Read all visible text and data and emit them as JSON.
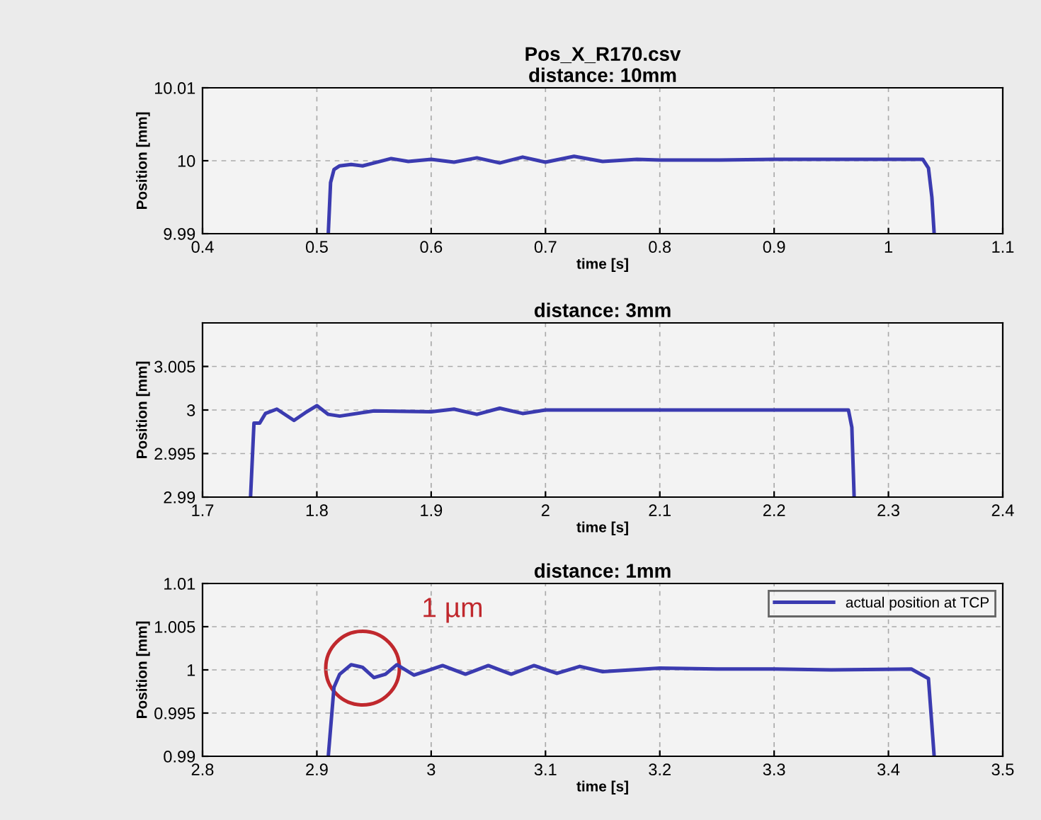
{
  "chart_data": [
    {
      "type": "line",
      "title": "Pos_X_R170.csv",
      "subtitle": "distance: 10mm",
      "xlabel": "time [s]",
      "ylabel": "Position [mm]",
      "xlim": [
        0.4,
        1.1
      ],
      "ylim": [
        9.99,
        10.01
      ],
      "xticks": [
        0.4,
        0.5,
        0.6,
        0.7,
        0.8,
        0.9,
        1,
        1.1
      ],
      "yticks": [
        9.99,
        10,
        10.01
      ],
      "grid": true,
      "line_style": "solid",
      "series": [
        {
          "color": "#3b3bb0",
          "x": [
            0.51,
            0.512,
            0.515,
            0.52,
            0.53,
            0.54,
            0.55,
            0.565,
            0.58,
            0.6,
            0.62,
            0.64,
            0.66,
            0.68,
            0.7,
            0.725,
            0.75,
            0.78,
            0.8,
            0.85,
            0.9,
            0.95,
            1.0,
            1.03,
            1.035,
            1.038,
            1.04
          ],
          "values": [
            9.99,
            9.997,
            9.9988,
            9.9993,
            9.9995,
            9.9993,
            9.9997,
            10.0003,
            9.9999,
            10.0002,
            9.9998,
            10.0004,
            9.9997,
            10.0005,
            9.9998,
            10.0006,
            9.9999,
            10.0002,
            10.0001,
            10.0001,
            10.0002,
            10.0002,
            10.0002,
            10.0002,
            9.999,
            9.995,
            9.99
          ]
        }
      ]
    },
    {
      "type": "line",
      "title": "distance: 3mm",
      "xlabel": "time [s]",
      "ylabel": "Position [mm]",
      "xlim": [
        1.7,
        2.4
      ],
      "ylim": [
        2.99,
        3.01
      ],
      "xticks": [
        1.7,
        1.8,
        1.9,
        2,
        2.1,
        2.2,
        2.3,
        2.4
      ],
      "yticks": [
        2.99,
        2.995,
        3,
        3.005
      ],
      "grid": true,
      "line_style": "solid",
      "series": [
        {
          "color": "#3b3bb0",
          "x": [
            1.742,
            1.745,
            1.75,
            1.755,
            1.765,
            1.78,
            1.79,
            1.8,
            1.81,
            1.82,
            1.85,
            1.9,
            1.92,
            1.94,
            1.96,
            1.98,
            2.0,
            2.1,
            2.2,
            2.265,
            2.268,
            2.27
          ],
          "values": [
            2.99,
            2.9985,
            2.9985,
            2.9996,
            3.0001,
            2.9988,
            2.9997,
            3.0005,
            2.9995,
            2.9993,
            2.9999,
            2.9998,
            3.0001,
            2.9995,
            3.0002,
            2.9996,
            3.0,
            3.0,
            3.0,
            3.0,
            2.998,
            2.99
          ]
        }
      ]
    },
    {
      "type": "line",
      "title": "distance: 1mm",
      "xlabel": "time [s]",
      "ylabel": "Position [mm]",
      "xlim": [
        2.8,
        3.5
      ],
      "ylim": [
        0.99,
        1.01
      ],
      "xticks": [
        2.8,
        2.9,
        3,
        3.1,
        3.2,
        3.3,
        3.4,
        3.5
      ],
      "yticks": [
        0.99,
        0.995,
        1,
        1.005,
        1.01
      ],
      "grid": true,
      "line_style": "solid",
      "legend": "top right",
      "annotations": [
        {
          "text": "1 µm",
          "x": 2.94,
          "y": 1.0002
        }
      ],
      "series": [
        {
          "name": "actual position at TCP",
          "color": "#3b3bb0",
          "x": [
            2.91,
            2.915,
            2.92,
            2.93,
            2.94,
            2.95,
            2.96,
            2.97,
            2.985,
            3.01,
            3.03,
            3.05,
            3.07,
            3.09,
            3.11,
            3.13,
            3.15,
            3.2,
            3.25,
            3.3,
            3.35,
            3.42,
            3.435,
            3.44
          ],
          "values": [
            0.99,
            0.998,
            0.9995,
            1.0006,
            1.0003,
            0.9991,
            0.9995,
            1.0006,
            0.9994,
            1.0005,
            0.9995,
            1.0005,
            0.9995,
            1.0005,
            0.9996,
            1.0004,
            0.9998,
            1.0002,
            1.0001,
            1.0001,
            1.0,
            1.0001,
            0.999,
            0.99
          ]
        }
      ]
    }
  ]
}
